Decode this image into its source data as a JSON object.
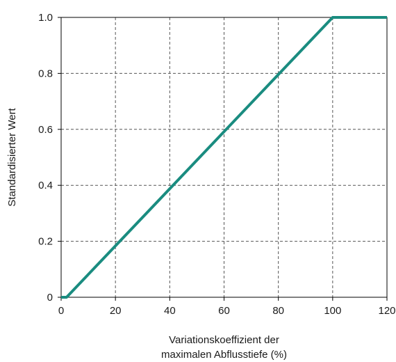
{
  "chart_data": {
    "type": "line",
    "xlabel_lines": [
      "Variationskoeffizient der",
      "maximalen Abflusstiefe (%)"
    ],
    "ylabel": "Standardisierter Wert",
    "xlim": [
      0,
      120
    ],
    "ylim": [
      0,
      1.0
    ],
    "x_ticks": [
      0,
      20,
      40,
      60,
      80,
      100,
      120
    ],
    "x_tick_labels": [
      "0",
      "20",
      "40",
      "60",
      "80",
      "100",
      "120"
    ],
    "y_ticks": [
      0,
      0.2,
      0.4,
      0.6,
      0.8,
      1.0
    ],
    "y_tick_labels": [
      "0",
      "0.2",
      "0.4",
      "0.6",
      "0.8",
      "1.0"
    ],
    "grid": true,
    "series": [
      {
        "color": "#1a8c80",
        "points": [
          [
            0,
            0
          ],
          [
            2,
            0
          ],
          [
            100,
            1.0
          ],
          [
            120,
            1.0
          ]
        ]
      }
    ]
  }
}
